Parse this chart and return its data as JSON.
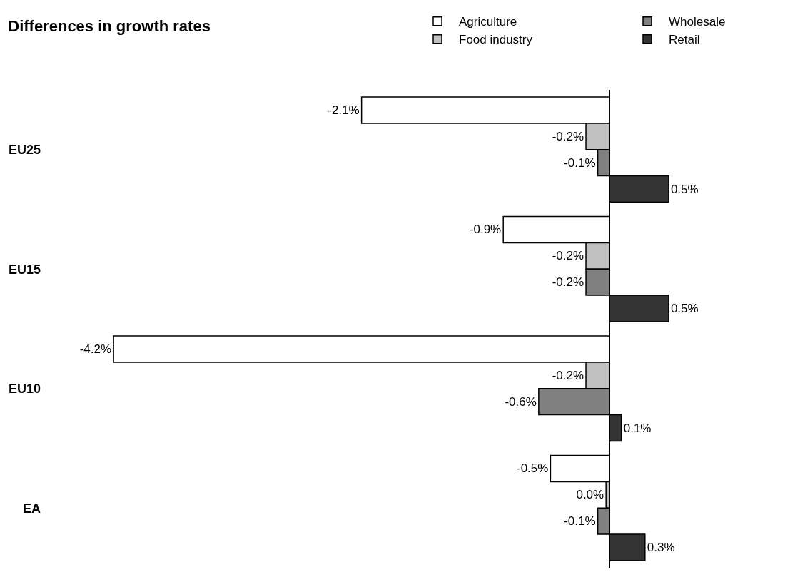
{
  "chart_data": {
    "type": "bar",
    "orientation": "horizontal",
    "title": "Differences in growth rates",
    "categories": [
      "EU25",
      "EU15",
      "EU10",
      "EA"
    ],
    "series": [
      {
        "name": "Agriculture",
        "color": "#ffffff",
        "values": [
          -2.1,
          -0.9,
          -4.2,
          -0.5
        ],
        "value_labels": [
          "-2.1%",
          "-0.9%",
          "-4.2%",
          "-0.5%"
        ]
      },
      {
        "name": "Food industry",
        "color": "#c0c0c0",
        "values": [
          -0.2,
          -0.2,
          -0.2,
          -0.03
        ],
        "value_labels": [
          "-0.2%",
          "-0.2%",
          "-0.2%",
          "0.0%"
        ]
      },
      {
        "name": "Wholesale",
        "color": "#808080",
        "values": [
          -0.1,
          -0.2,
          -0.6,
          -0.1
        ],
        "value_labels": [
          "-0.1%",
          "-0.2%",
          "-0.6%",
          "-0.1%"
        ]
      },
      {
        "name": "Retail",
        "color": "#333333",
        "values": [
          0.5,
          0.5,
          0.1,
          0.3
        ],
        "value_labels": [
          "0.5%",
          "0.5%",
          "0.1%",
          "0.3%"
        ]
      }
    ],
    "legend": "top right",
    "grid": false
  }
}
